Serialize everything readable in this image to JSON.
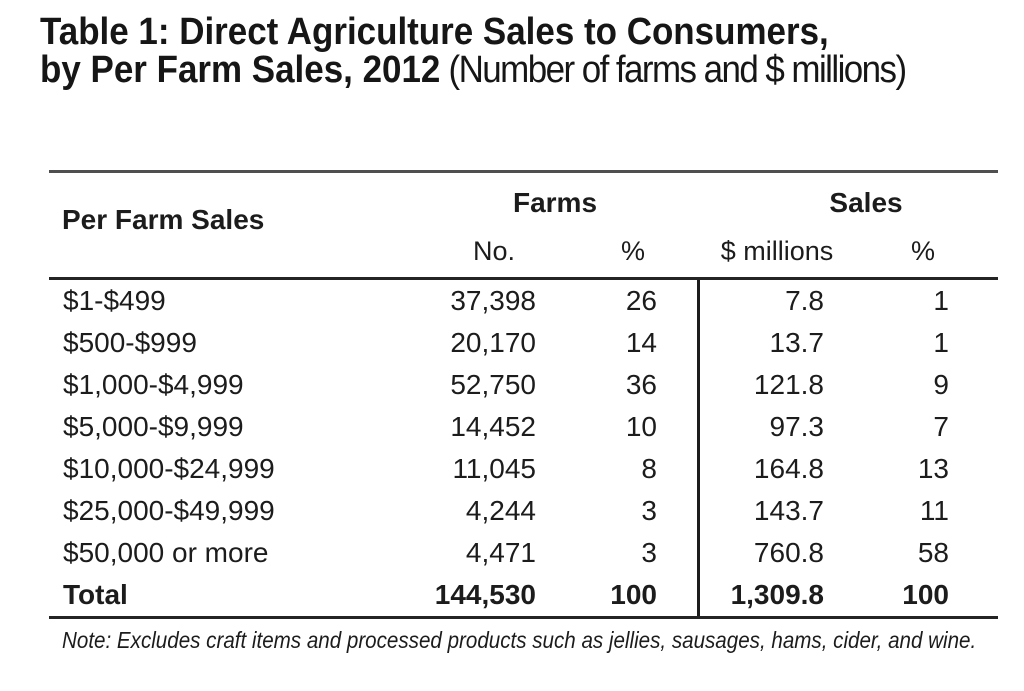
{
  "title": {
    "line1": "Table 1: Direct Agriculture Sales to Consumers,",
    "line2_bold": "by Per Farm Sales, 2012",
    "line2_normal": " (Number of farms and $ millions)"
  },
  "table": {
    "row_header": "Per Farm Sales",
    "groups": [
      {
        "label": "Farms"
      },
      {
        "label": "Sales"
      }
    ],
    "subheaders": [
      "No.",
      "%",
      "$ millions",
      "%"
    ],
    "rows": [
      {
        "label": "$1-$499",
        "farms_no": "37,398",
        "farms_pct": "26",
        "sales_millions": "7.8",
        "sales_pct": "1"
      },
      {
        "label": "$500-$999",
        "farms_no": "20,170",
        "farms_pct": "14",
        "sales_millions": "13.7",
        "sales_pct": "1"
      },
      {
        "label": "$1,000-$4,999",
        "farms_no": "52,750",
        "farms_pct": "36",
        "sales_millions": "121.8",
        "sales_pct": "9"
      },
      {
        "label": "$5,000-$9,999",
        "farms_no": "14,452",
        "farms_pct": "10",
        "sales_millions": "97.3",
        "sales_pct": "7"
      },
      {
        "label": "$10,000-$24,999",
        "farms_no": "11,045",
        "farms_pct": "8",
        "sales_millions": "164.8",
        "sales_pct": "13"
      },
      {
        "label": "$25,000-$49,999",
        "farms_no": "4,244",
        "farms_pct": "3",
        "sales_millions": "143.7",
        "sales_pct": "11"
      },
      {
        "label": "$50,000 or more",
        "farms_no": "4,471",
        "farms_pct": "3",
        "sales_millions": "760.8",
        "sales_pct": "58"
      }
    ],
    "total": {
      "label": "Total",
      "farms_no": "144,530",
      "farms_pct": "100",
      "sales_millions": "1,309.8",
      "sales_pct": "100"
    }
  },
  "note": "Note: Excludes craft items and processed products such as jellies, sausages, hams, cider, and wine."
}
